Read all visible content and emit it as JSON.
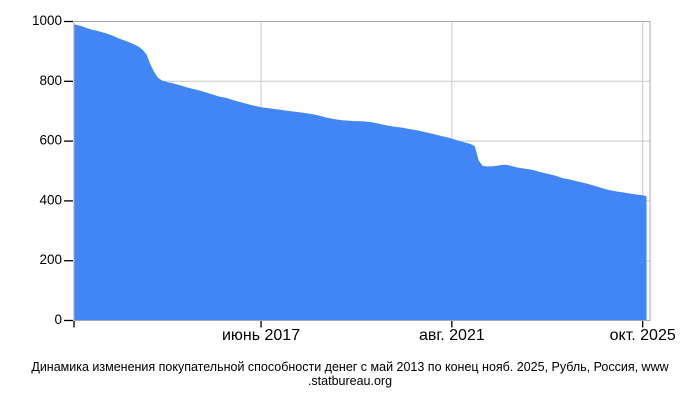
{
  "page": {
    "background": "#ffffff"
  },
  "caption": {
    "full_text": "Динамика изменения покупательной способности денег с май 2013 по конец нояб. 2025, Рубль, Россия, www.statbureau.org",
    "line1": "Динамика изменения покупательной способности денег с май 2013 по конец нояб. 2025, Рубль, Россия, www",
    "line2": ".statbureau.org"
  },
  "chart_data": {
    "type": "area",
    "title": "",
    "xlabel": "",
    "ylabel": "",
    "x_unit": "months from май 2013 (m=0) to нояб. 2025 (m=150)",
    "xlim_months": [
      0,
      150
    ],
    "ylim": [
      0,
      1000
    ],
    "grid": true,
    "legend": false,
    "y_ticks": [
      0,
      200,
      400,
      600,
      800,
      1000
    ],
    "x_ticks": [
      {
        "month": 49,
        "label": "июнь 2017"
      },
      {
        "month": 99,
        "label": "авг. 2021"
      },
      {
        "month": 149,
        "label": "окт. 2025"
      }
    ],
    "colors": {
      "area": "#4285f4",
      "grid": "#c9c9c9",
      "border": "#a9a9a9",
      "tick": "#000000",
      "text": "#000000"
    },
    "points": [
      [
        0,
        991
      ],
      [
        1,
        988
      ],
      [
        2,
        984
      ],
      [
        4,
        975
      ],
      [
        6,
        969
      ],
      [
        8,
        962
      ],
      [
        10,
        953
      ],
      [
        12,
        942
      ],
      [
        14,
        933
      ],
      [
        16,
        922
      ],
      [
        17,
        915
      ],
      [
        18,
        905
      ],
      [
        19,
        890
      ],
      [
        20,
        857
      ],
      [
        21,
        831
      ],
      [
        22,
        812
      ],
      [
        23,
        803
      ],
      [
        24,
        799
      ],
      [
        26,
        793
      ],
      [
        28,
        786
      ],
      [
        30,
        778
      ],
      [
        32,
        772
      ],
      [
        34,
        765
      ],
      [
        36,
        757
      ],
      [
        38,
        749
      ],
      [
        40,
        744
      ],
      [
        42,
        736
      ],
      [
        44,
        729
      ],
      [
        46,
        722
      ],
      [
        48,
        716
      ],
      [
        49,
        713
      ],
      [
        52,
        708
      ],
      [
        54,
        705
      ],
      [
        56,
        701
      ],
      [
        58,
        698
      ],
      [
        60,
        695
      ],
      [
        62,
        691
      ],
      [
        64,
        686
      ],
      [
        66,
        679
      ],
      [
        68,
        674
      ],
      [
        70,
        670
      ],
      [
        72,
        668
      ],
      [
        74,
        667
      ],
      [
        76,
        666
      ],
      [
        78,
        663
      ],
      [
        80,
        658
      ],
      [
        82,
        652
      ],
      [
        84,
        648
      ],
      [
        86,
        645
      ],
      [
        88,
        640
      ],
      [
        90,
        636
      ],
      [
        92,
        630
      ],
      [
        94,
        624
      ],
      [
        96,
        618
      ],
      [
        98,
        612
      ],
      [
        100,
        604
      ],
      [
        102,
        597
      ],
      [
        104,
        590
      ],
      [
        105,
        583
      ],
      [
        106,
        536
      ],
      [
        107,
        518
      ],
      [
        108,
        515
      ],
      [
        110,
        516
      ],
      [
        112,
        520
      ],
      [
        113,
        521
      ],
      [
        114,
        519
      ],
      [
        116,
        512
      ],
      [
        118,
        508
      ],
      [
        120,
        504
      ],
      [
        122,
        497
      ],
      [
        124,
        491
      ],
      [
        126,
        485
      ],
      [
        128,
        476
      ],
      [
        130,
        471
      ],
      [
        132,
        465
      ],
      [
        134,
        459
      ],
      [
        136,
        452
      ],
      [
        138,
        444
      ],
      [
        140,
        437
      ],
      [
        142,
        432
      ],
      [
        144,
        428
      ],
      [
        146,
        424
      ],
      [
        148,
        420
      ],
      [
        149,
        419
      ],
      [
        150,
        416
      ]
    ]
  }
}
